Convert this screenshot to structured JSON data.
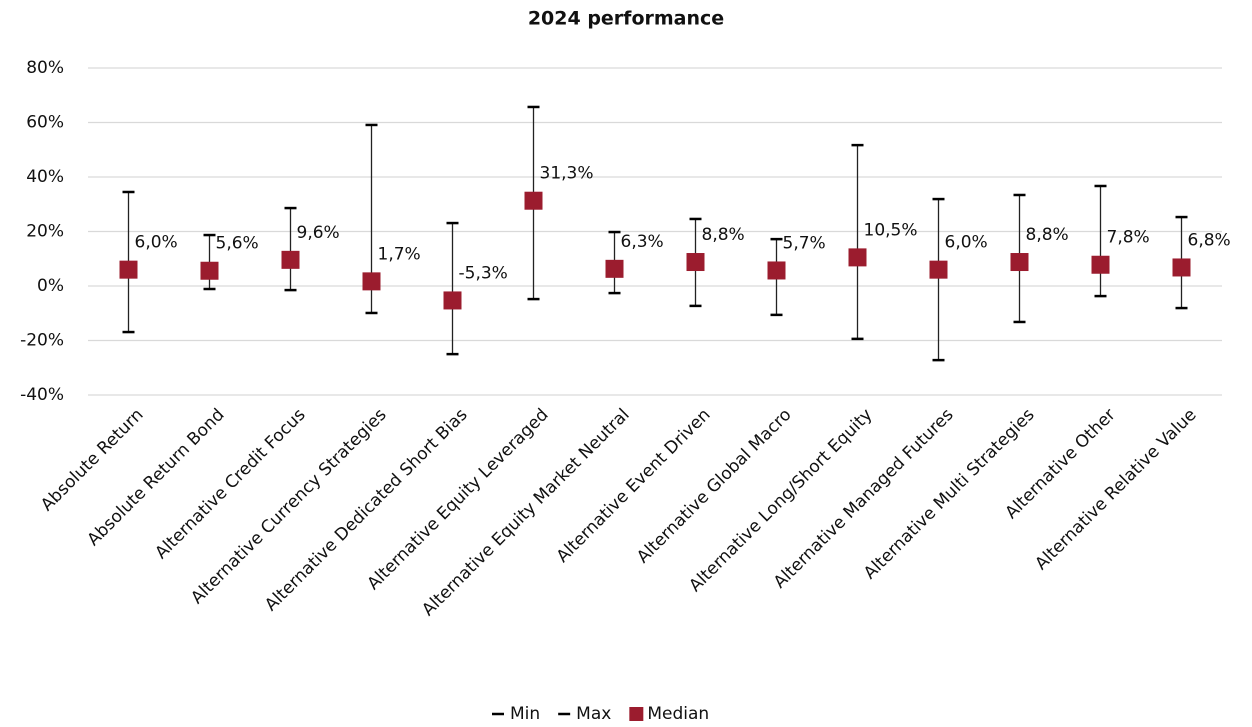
{
  "chart_data": {
    "type": "errorbar",
    "title": "2024 performance",
    "categories": [
      "Absolute Return",
      "Absolute Return Bond",
      "Alternative Credit Focus",
      "Alternative Currency Strategies",
      "Alternative Dedicated Short Bias",
      "Alternative Equity Leveraged",
      "Alternative Equity Market Neutral",
      "Alternative Event Driven",
      "Alternative Global Macro",
      "Alternative Long/Short Equity",
      "Alternative Managed Futures",
      "Alternative Multi Strategies",
      "Alternative Other",
      "Alternative Relative Value"
    ],
    "series": [
      {
        "name": "Min",
        "color": "#000000",
        "values": [
          -16.9,
          -1.1,
          -1.5,
          -9.9,
          -25.0,
          -4.8,
          -2.6,
          -7.3,
          -10.6,
          -19.4,
          -27.2,
          -13.2,
          -3.7,
          -8.1
        ]
      },
      {
        "name": "Max",
        "color": "#000000",
        "values": [
          34.5,
          18.7,
          28.6,
          59.1,
          23.1,
          65.7,
          19.8,
          24.6,
          17.2,
          51.7,
          31.9,
          33.4,
          36.7,
          25.3
        ]
      },
      {
        "name": "Median",
        "color": "#9b1c2e",
        "values": [
          6.0,
          5.6,
          9.6,
          1.7,
          -5.3,
          31.3,
          6.3,
          8.8,
          5.7,
          10.5,
          6.0,
          8.8,
          7.8,
          6.8
        ],
        "value_labels": [
          "6,0%",
          "5,6%",
          "9,6%",
          "1,7%",
          "-5,3%",
          "31,3%",
          "6,3%",
          "8,8%",
          "5,7%",
          "10,5%",
          "6,0%",
          "8,8%",
          "7,8%",
          "6,8%"
        ]
      }
    ],
    "ylim": [
      -40,
      80
    ],
    "yticks": [
      {
        "value": -40,
        "label": "-40%"
      },
      {
        "value": -20,
        "label": "-20%"
      },
      {
        "value": 0,
        "label": "0%"
      },
      {
        "value": 20,
        "label": "20%"
      },
      {
        "value": 40,
        "label": "40%"
      },
      {
        "value": 60,
        "label": "60%"
      },
      {
        "value": 80,
        "label": "80%"
      }
    ],
    "grid": true
  }
}
